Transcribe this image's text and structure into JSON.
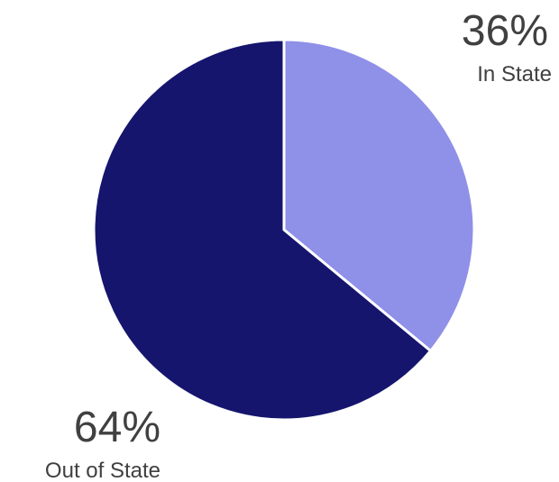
{
  "chart_data": {
    "type": "pie",
    "slices": [
      {
        "label": "In State",
        "value": 36,
        "display": "36%",
        "color": "#8f90e8"
      },
      {
        "label": "Out of State",
        "value": 64,
        "display": "64%",
        "color": "#15156e"
      }
    ]
  }
}
